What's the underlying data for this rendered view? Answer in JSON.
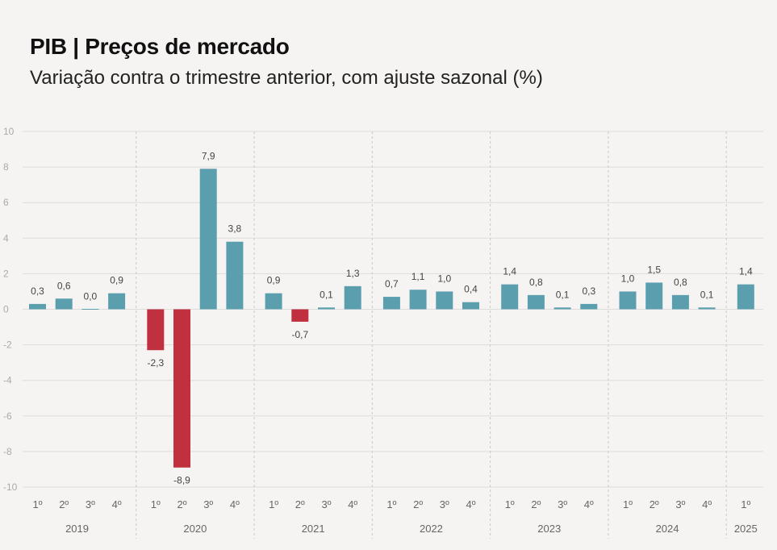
{
  "title": "PIB | Preços de mercado",
  "subtitle": "Variação contra o trimestre anterior, com ajuste sazonal (%)",
  "colors": {
    "positive": "#5b9faf",
    "negative": "#c0303f",
    "grid": "#dcdcdc",
    "background": "#f5f4f2"
  },
  "chart_data": {
    "type": "bar",
    "title": "PIB | Preços de mercado",
    "subtitle": "Variação contra o trimestre anterior, com ajuste sazonal (%)",
    "ylim": [
      -10,
      10
    ],
    "yticks": [
      10,
      8,
      6,
      4,
      2,
      0,
      -2,
      -4,
      -6,
      -8,
      -10
    ],
    "grid": true,
    "groups": [
      {
        "year": "2019",
        "quarters": [
          "1º",
          "2º",
          "3º",
          "4º"
        ],
        "values": [
          0.3,
          0.6,
          0.0,
          0.9
        ],
        "labels": [
          "0,3",
          "0,6",
          "0,0",
          "0,9"
        ]
      },
      {
        "year": "2020",
        "quarters": [
          "1º",
          "2º",
          "3º",
          "4º"
        ],
        "values": [
          -2.3,
          -8.9,
          7.9,
          3.8
        ],
        "labels": [
          "-2,3",
          "-8,9",
          "7,9",
          "3,8"
        ]
      },
      {
        "year": "2021",
        "quarters": [
          "1º",
          "2º",
          "3º",
          "4º"
        ],
        "values": [
          0.9,
          -0.7,
          0.1,
          1.3
        ],
        "labels": [
          "0,9",
          "-0,7",
          "0,1",
          "1,3"
        ]
      },
      {
        "year": "2022",
        "quarters": [
          "1º",
          "2º",
          "3º",
          "4º"
        ],
        "values": [
          0.7,
          1.1,
          1.0,
          0.4
        ],
        "labels": [
          "0,7",
          "1,1",
          "1,0",
          "0,4"
        ]
      },
      {
        "year": "2023",
        "quarters": [
          "1º",
          "2º",
          "3º",
          "4º"
        ],
        "values": [
          1.4,
          0.8,
          0.1,
          0.3
        ],
        "labels": [
          "1,4",
          "0,8",
          "0,1",
          "0,3"
        ]
      },
      {
        "year": "2024",
        "quarters": [
          "1º",
          "2º",
          "3º",
          "4º"
        ],
        "values": [
          1.0,
          1.5,
          0.8,
          0.1
        ],
        "labels": [
          "1,0",
          "1,5",
          "0,8",
          "0,1"
        ]
      },
      {
        "year": "2025",
        "quarters": [
          "1º"
        ],
        "values": [
          1.4
        ],
        "labels": [
          "1,4"
        ]
      }
    ]
  }
}
